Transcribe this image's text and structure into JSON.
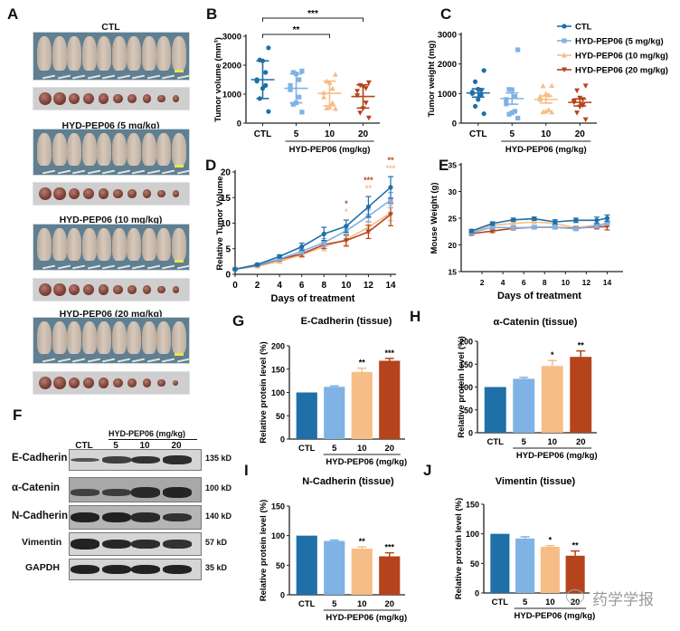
{
  "panels": {
    "A": "A",
    "B": "B",
    "C": "C",
    "D": "D",
    "E": "E",
    "F": "F",
    "G": "G",
    "H": "H",
    "I": "I",
    "J": "J"
  },
  "colors": {
    "ctl": "#1f6fa8",
    "dose5": "#7fb2e5",
    "dose10": "#f6bd86",
    "dose20": "#b5441c"
  },
  "panel_a": {
    "groups": [
      {
        "label": "CTL",
        "mice": 10,
        "tumors": 10
      },
      {
        "label": "HYD-PEP06 (5 mg/kg)",
        "mice": 10,
        "tumors": 10
      },
      {
        "label": "HYD-PEP06 (10 mg/kg)",
        "mice": 10,
        "tumors": 10
      },
      {
        "label": "HYD-PEP06 (20 mg/kg)",
        "mice": 10,
        "tumors": 10
      }
    ]
  },
  "panel_f": {
    "group_label": "HYD-PEP06 (mg/kg)",
    "lanes": [
      "CTL",
      "5",
      "10",
      "20"
    ],
    "rows": [
      {
        "protein": "E-Cadherin",
        "kd": "135 kD",
        "intensity": [
          0.45,
          0.65,
          0.8,
          0.85
        ]
      },
      {
        "protein": "α-Catenin",
        "kd": "100 kD",
        "intensity": [
          0.55,
          0.6,
          0.85,
          0.9
        ]
      },
      {
        "protein": "N-Cadherin",
        "kd": "140 kD",
        "intensity": [
          0.95,
          0.95,
          0.85,
          0.75
        ]
      },
      {
        "protein": "Vimentin",
        "kd": "57 kD",
        "intensity": [
          0.95,
          0.9,
          0.85,
          0.8
        ]
      },
      {
        "protein": "GAPDH",
        "kd": "35 kD",
        "intensity": [
          0.95,
          0.95,
          0.95,
          0.95
        ]
      }
    ]
  },
  "watermark": "药学学报",
  "chart_data": [
    {
      "id": "B",
      "type": "scatter",
      "title": "",
      "xlabel": "HYD-PEP06 (mg/kg)",
      "ylabel": "Tumor volume (mm³)",
      "categories": [
        "CTL",
        "5",
        "10",
        "20"
      ],
      "ylim": [
        0,
        3000
      ],
      "yticks": [
        0,
        1000,
        2000,
        3000
      ],
      "series": [
        {
          "name": "CTL",
          "mean": 1500,
          "sd_low": 850,
          "sd_high": 2150,
          "points": [
            2600,
            2180,
            2150,
            1750,
            1500,
            1450,
            1300,
            1200,
            850,
            400
          ]
        },
        {
          "name": "5",
          "mean": 1200,
          "sd_low": 700,
          "sd_high": 1700,
          "points": [
            1800,
            1750,
            1700,
            1500,
            1300,
            1150,
            900,
            700,
            650,
            380
          ]
        },
        {
          "name": "10",
          "mean": 1030,
          "sd_low": 600,
          "sd_high": 1450,
          "points": [
            1680,
            1450,
            1400,
            1200,
            1050,
            900,
            700,
            550,
            520,
            500
          ]
        },
        {
          "name": "20",
          "mean": 920,
          "sd_low": 520,
          "sd_high": 1320,
          "points": [
            1400,
            1300,
            1250,
            1200,
            1100,
            950,
            700,
            500,
            350,
            180
          ]
        }
      ],
      "annotations": [
        {
          "from": "CTL",
          "to": "10",
          "label": "**"
        },
        {
          "from": "CTL",
          "to": "20",
          "label": "***"
        }
      ]
    },
    {
      "id": "C",
      "type": "scatter",
      "title": "",
      "xlabel": "HYD-PEP06 (mg/kg)",
      "ylabel": "Tumor weight (mg)",
      "categories": [
        "CTL",
        "5",
        "10",
        "20"
      ],
      "ylim": [
        0,
        3000
      ],
      "yticks": [
        0,
        1000,
        2000,
        3000
      ],
      "legend": [
        "CTL",
        "HYD-PEP06 (5 mg/kg)",
        "HYD-PEP06 (10 mg/kg)",
        "HYD-PEP06 (20 mg/kg)"
      ],
      "legend_position": "top-right",
      "series": [
        {
          "name": "CTL",
          "mean": 1020,
          "sem_low": 880,
          "sem_high": 1160,
          "points": [
            1780,
            1400,
            1150,
            1120,
            1050,
            1000,
            950,
            800,
            570,
            320
          ]
        },
        {
          "name": "5",
          "mean": 830,
          "sem_low": 640,
          "sem_high": 1020,
          "points": [
            2480,
            1140,
            1130,
            900,
            800,
            650,
            400,
            350,
            300,
            170
          ]
        },
        {
          "name": "10",
          "mean": 800,
          "sem_low": 680,
          "sem_high": 920,
          "points": [
            1270,
            1260,
            1000,
            950,
            900,
            800,
            450,
            400,
            380,
            370
          ]
        },
        {
          "name": "20",
          "mean": 700,
          "sem_low": 580,
          "sem_high": 820,
          "points": [
            1260,
            1100,
            850,
            800,
            750,
            700,
            600,
            550,
            350,
            120
          ]
        }
      ]
    },
    {
      "id": "D",
      "type": "line",
      "title": "",
      "xlabel": "Days of treatment",
      "ylabel": "Relative Tumor Volume",
      "x": [
        0,
        2,
        4,
        6,
        8,
        10,
        12,
        14
      ],
      "xlim": [
        0,
        14
      ],
      "ylim": [
        0,
        20
      ],
      "yticks": [
        0,
        5,
        10,
        15,
        20
      ],
      "series": [
        {
          "name": "CTL",
          "values": [
            1.0,
            1.9,
            3.5,
            5.4,
            7.9,
            9.4,
            13.2,
            17.0
          ],
          "err": [
            0.1,
            0.2,
            0.3,
            0.7,
            1.3,
            1.2,
            2.0,
            2.1
          ]
        },
        {
          "name": "HYD-PEP06 (5 mg/kg)",
          "values": [
            1.0,
            1.8,
            3.0,
            4.5,
            6.2,
            8.5,
            11.4,
            14.5
          ],
          "err": [
            0.1,
            0.2,
            0.3,
            0.5,
            0.8,
            1.0,
            1.2,
            1.5
          ]
        },
        {
          "name": "HYD-PEP06 (10 mg/kg)",
          "values": [
            1.0,
            1.6,
            2.5,
            3.8,
            5.4,
            6.8,
            9.2,
            12.0
          ],
          "err": [
            0.1,
            0.2,
            0.3,
            0.5,
            0.8,
            1.0,
            1.2,
            1.5
          ]
        },
        {
          "name": "HYD-PEP06 (20 mg/kg)",
          "values": [
            1.0,
            1.7,
            2.9,
            4.0,
            5.8,
            6.6,
            8.3,
            11.7
          ],
          "err": [
            0.1,
            0.2,
            0.3,
            0.5,
            0.8,
            1.1,
            1.3,
            2.2
          ]
        }
      ],
      "annotations": [
        {
          "x": 10,
          "labels": [
            "*",
            "*"
          ]
        },
        {
          "x": 12,
          "labels": [
            "***",
            "**"
          ]
        },
        {
          "x": 14,
          "labels": [
            "**",
            "***"
          ]
        }
      ]
    },
    {
      "id": "E",
      "type": "line",
      "title": "",
      "xlabel": "Days of treatment",
      "ylabel": "Mouse Weight (g)",
      "x": [
        1,
        3,
        5,
        7,
        9,
        11,
        13,
        14
      ],
      "xticks": [
        2,
        4,
        6,
        8,
        10,
        12,
        14
      ],
      "xlim": [
        0,
        15
      ],
      "ylim": [
        15,
        35
      ],
      "yticks": [
        15,
        20,
        25,
        30,
        35
      ],
      "series": [
        {
          "name": "CTL",
          "values": [
            22.6,
            24.0,
            24.7,
            24.9,
            24.3,
            24.6,
            24.6,
            25.0
          ],
          "err": [
            0.3,
            0.3,
            0.3,
            0.3,
            0.4,
            0.4,
            0.6,
            0.6
          ]
        },
        {
          "name": "HYD-PEP06 (5 mg/kg)",
          "values": [
            22.3,
            23.3,
            23.2,
            23.3,
            23.3,
            23.0,
            23.6,
            24.1
          ],
          "err": [
            0.3,
            0.3,
            0.3,
            0.3,
            0.3,
            0.3,
            0.4,
            0.4
          ]
        },
        {
          "name": "HYD-PEP06 (10 mg/kg)",
          "values": [
            22.4,
            23.7,
            24.0,
            24.3,
            24.0,
            23.2,
            23.7,
            23.8
          ],
          "err": [
            0.3,
            0.3,
            0.3,
            0.3,
            0.3,
            0.3,
            0.4,
            0.4
          ]
        },
        {
          "name": "HYD-PEP06 (20 mg/kg)",
          "values": [
            22.1,
            22.6,
            23.1,
            23.3,
            23.3,
            23.1,
            23.4,
            23.4
          ],
          "err": [
            0.3,
            0.3,
            0.3,
            0.3,
            0.3,
            0.3,
            0.4,
            0.6
          ]
        }
      ]
    },
    {
      "id": "G",
      "type": "bar",
      "title": "E-Cadherin (tissue)",
      "xlabel": "HYD-PEP06 (mg/kg)",
      "ylabel": "Relative protein level (%)",
      "categories": [
        "CTL",
        "5",
        "10",
        "20"
      ],
      "values": [
        100,
        112,
        144,
        168
      ],
      "err": [
        0,
        2,
        8,
        5
      ],
      "significance": [
        "",
        "",
        "**",
        "***"
      ],
      "ylim": [
        0,
        200
      ],
      "yticks": [
        0,
        50,
        100,
        150,
        200
      ]
    },
    {
      "id": "H",
      "type": "bar",
      "title": "α-Catenin (tissue)",
      "xlabel": "HYD-PEP06 (mg/kg)",
      "ylabel": "Relative protein level (%)",
      "categories": [
        "CTL",
        "5",
        "10",
        "20"
      ],
      "values": [
        100,
        118,
        146,
        166
      ],
      "err": [
        0,
        3,
        12,
        13
      ],
      "significance": [
        "",
        "",
        "*",
        "**"
      ],
      "ylim": [
        0,
        200
      ],
      "yticks": [
        0,
        50,
        100,
        150,
        200
      ]
    },
    {
      "id": "I",
      "type": "bar",
      "title": "N-Cadherin (tissue)",
      "xlabel": "HYD-PEP06 (mg/kg)",
      "ylabel": "Relative protein level (%)",
      "categories": [
        "CTL",
        "5",
        "10",
        "20"
      ],
      "values": [
        100,
        91,
        78,
        65
      ],
      "err": [
        0,
        1.5,
        3,
        6
      ],
      "significance": [
        "",
        "",
        "**",
        "***"
      ],
      "ylim": [
        0,
        150
      ],
      "yticks": [
        0,
        50,
        100,
        150
      ]
    },
    {
      "id": "J",
      "type": "bar",
      "title": "Vimentin (tissue)",
      "xlabel": "HYD-PEP06 (mg/kg)",
      "ylabel": "Relative protein level (%)",
      "categories": [
        "CTL",
        "5",
        "10",
        "20"
      ],
      "values": [
        100,
        92,
        78,
        63
      ],
      "err": [
        0,
        3,
        2,
        8
      ],
      "significance": [
        "",
        "",
        "*",
        "**"
      ],
      "ylim": [
        0,
        150
      ],
      "yticks": [
        0,
        50,
        100,
        150
      ]
    }
  ]
}
